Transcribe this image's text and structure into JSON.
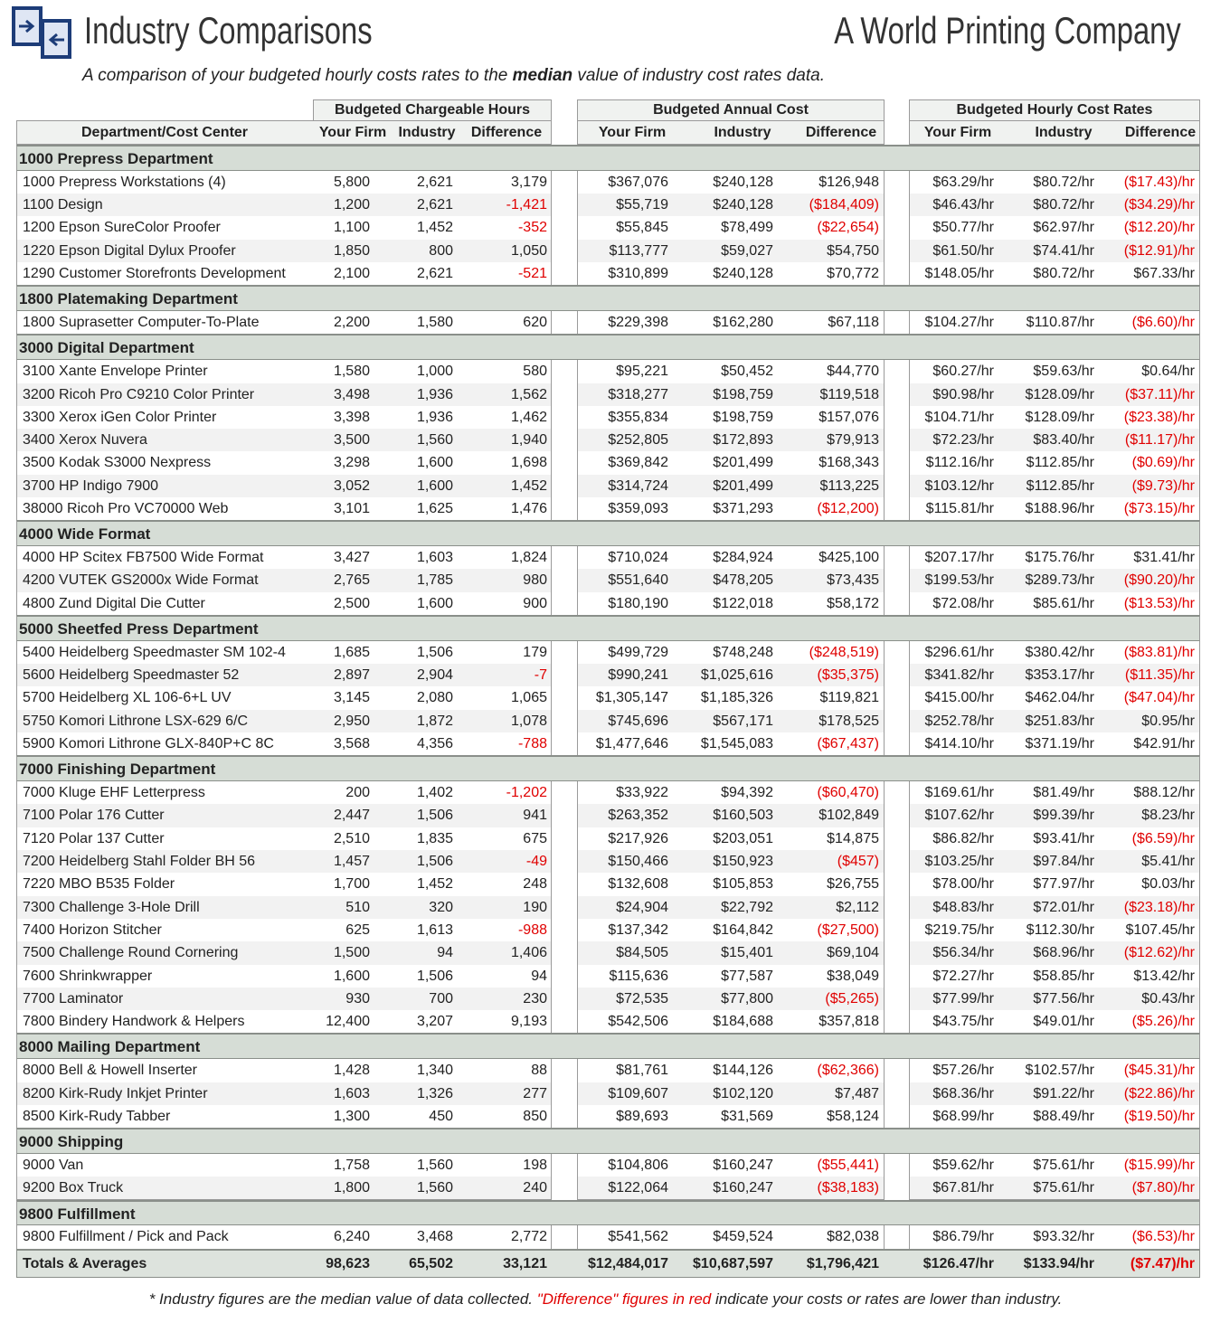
{
  "header": {
    "title": "Industry Comparisons",
    "company": "A World Printing Company",
    "subtitle": [
      "A comparison of your budgeted hourly costs rates to the ",
      "median",
      " value of industry cost rates data."
    ]
  },
  "table": {
    "group_headers": [
      "Budgeted Chargeable Hours",
      "Budgeted Annual Cost",
      "Budgeted Hourly Cost Rates"
    ],
    "column_headers": [
      "Department/Cost Center",
      "Your Firm",
      "Industry",
      "Difference",
      "Your Firm",
      "Industry",
      "Difference",
      "Your Firm",
      "Industry",
      "Difference"
    ],
    "sections": [
      {
        "name": "1000 Prepress Department",
        "rows": [
          [
            "1000 Prepress Workstations (4)",
            "5,800",
            "2,621",
            "3,179",
            "$367,076",
            "$240,128",
            "$126,948",
            "$63.29/hr",
            "$80.72/hr",
            "($17.43)/hr"
          ],
          [
            "1100 Design",
            "1,200",
            "2,621",
            "-1,421",
            "$55,719",
            "$240,128",
            "($184,409)",
            "$46.43/hr",
            "$80.72/hr",
            "($34.29)/hr"
          ],
          [
            "1200 Epson SureColor Proofer",
            "1,100",
            "1,452",
            "-352",
            "$55,845",
            "$78,499",
            "($22,654)",
            "$50.77/hr",
            "$62.97/hr",
            "($12.20)/hr"
          ],
          [
            "1220 Epson Digital Dylux Proofer",
            "1,850",
            "800",
            "1,050",
            "$113,777",
            "$59,027",
            "$54,750",
            "$61.50/hr",
            "$74.41/hr",
            "($12.91)/hr"
          ],
          [
            "1290 Customer Storefronts Development",
            "2,100",
            "2,621",
            "-521",
            "$310,899",
            "$240,128",
            "$70,772",
            "$148.05/hr",
            "$80.72/hr",
            "$67.33/hr"
          ]
        ]
      },
      {
        "name": "1800 Platemaking Department",
        "rows": [
          [
            "1800 Suprasetter Computer-To-Plate",
            "2,200",
            "1,580",
            "620",
            "$229,398",
            "$162,280",
            "$67,118",
            "$104.27/hr",
            "$110.87/hr",
            "($6.60)/hr"
          ]
        ]
      },
      {
        "name": "3000 Digital Department",
        "rows": [
          [
            "3100 Xante Envelope Printer",
            "1,580",
            "1,000",
            "580",
            "$95,221",
            "$50,452",
            "$44,770",
            "$60.27/hr",
            "$59.63/hr",
            "$0.64/hr"
          ],
          [
            "3200 Ricoh Pro C9210 Color Printer",
            "3,498",
            "1,936",
            "1,562",
            "$318,277",
            "$198,759",
            "$119,518",
            "$90.98/hr",
            "$128.09/hr",
            "($37.11)/hr"
          ],
          [
            "3300 Xerox iGen Color Printer",
            "3,398",
            "1,936",
            "1,462",
            "$355,834",
            "$198,759",
            "$157,076",
            "$104.71/hr",
            "$128.09/hr",
            "($23.38)/hr"
          ],
          [
            "3400 Xerox Nuvera",
            "3,500",
            "1,560",
            "1,940",
            "$252,805",
            "$172,893",
            "$79,913",
            "$72.23/hr",
            "$83.40/hr",
            "($11.17)/hr"
          ],
          [
            "3500 Kodak S3000 Nexpress",
            "3,298",
            "1,600",
            "1,698",
            "$369,842",
            "$201,499",
            "$168,343",
            "$112.16/hr",
            "$112.85/hr",
            "($0.69)/hr"
          ],
          [
            "3700 HP Indigo 7900",
            "3,052",
            "1,600",
            "1,452",
            "$314,724",
            "$201,499",
            "$113,225",
            "$103.12/hr",
            "$112.85/hr",
            "($9.73)/hr"
          ],
          [
            "38000 Ricoh Pro VC70000 Web",
            "3,101",
            "1,625",
            "1,476",
            "$359,093",
            "$371,293",
            "($12,200)",
            "$115.81/hr",
            "$188.96/hr",
            "($73.15)/hr"
          ]
        ]
      },
      {
        "name": "4000 Wide Format",
        "rows": [
          [
            "4000 HP Scitex FB7500 Wide Format",
            "3,427",
            "1,603",
            "1,824",
            "$710,024",
            "$284,924",
            "$425,100",
            "$207.17/hr",
            "$175.76/hr",
            "$31.41/hr"
          ],
          [
            "4200 VUTEK GS2000x Wide Format",
            "2,765",
            "1,785",
            "980",
            "$551,640",
            "$478,205",
            "$73,435",
            "$199.53/hr",
            "$289.73/hr",
            "($90.20)/hr"
          ],
          [
            "4800 Zund Digital Die Cutter",
            "2,500",
            "1,600",
            "900",
            "$180,190",
            "$122,018",
            "$58,172",
            "$72.08/hr",
            "$85.61/hr",
            "($13.53)/hr"
          ]
        ]
      },
      {
        "name": "5000 Sheetfed Press Department",
        "rows": [
          [
            "5400 Heidelberg Speedmaster SM 102-4",
            "1,685",
            "1,506",
            "179",
            "$499,729",
            "$748,248",
            "($248,519)",
            "$296.61/hr",
            "$380.42/hr",
            "($83.81)/hr"
          ],
          [
            "5600 Heidelberg Speedmaster 52",
            "2,897",
            "2,904",
            "-7",
            "$990,241",
            "$1,025,616",
            "($35,375)",
            "$341.82/hr",
            "$353.17/hr",
            "($11.35)/hr"
          ],
          [
            "5700 Heidelberg XL 106-6+L UV",
            "3,145",
            "2,080",
            "1,065",
            "$1,305,147",
            "$1,185,326",
            "$119,821",
            "$415.00/hr",
            "$462.04/hr",
            "($47.04)/hr"
          ],
          [
            "5750 Komori Lithrone LSX-629 6/C",
            "2,950",
            "1,872",
            "1,078",
            "$745,696",
            "$567,171",
            "$178,525",
            "$252.78/hr",
            "$251.83/hr",
            "$0.95/hr"
          ],
          [
            "5900 Komori Lithrone GLX-840P+C 8C",
            "3,568",
            "4,356",
            "-788",
            "$1,477,646",
            "$1,545,083",
            "($67,437)",
            "$414.10/hr",
            "$371.19/hr",
            "$42.91/hr"
          ]
        ]
      },
      {
        "name": "7000 Finishing Department",
        "rows": [
          [
            "7000 Kluge EHF Letterpress",
            "200",
            "1,402",
            "-1,202",
            "$33,922",
            "$94,392",
            "($60,470)",
            "$169.61/hr",
            "$81.49/hr",
            "$88.12/hr"
          ],
          [
            "7100 Polar 176 Cutter",
            "2,447",
            "1,506",
            "941",
            "$263,352",
            "$160,503",
            "$102,849",
            "$107.62/hr",
            "$99.39/hr",
            "$8.23/hr"
          ],
          [
            "7120 Polar 137 Cutter",
            "2,510",
            "1,835",
            "675",
            "$217,926",
            "$203,051",
            "$14,875",
            "$86.82/hr",
            "$93.41/hr",
            "($6.59)/hr"
          ],
          [
            "7200 Heidelberg Stahl Folder BH 56",
            "1,457",
            "1,506",
            "-49",
            "$150,466",
            "$150,923",
            "($457)",
            "$103.25/hr",
            "$97.84/hr",
            "$5.41/hr"
          ],
          [
            "7220 MBO B535 Folder",
            "1,700",
            "1,452",
            "248",
            "$132,608",
            "$105,853",
            "$26,755",
            "$78.00/hr",
            "$77.97/hr",
            "$0.03/hr"
          ],
          [
            "7300 Challenge 3-Hole Drill",
            "510",
            "320",
            "190",
            "$24,904",
            "$22,792",
            "$2,112",
            "$48.83/hr",
            "$72.01/hr",
            "($23.18)/hr"
          ],
          [
            "7400 Horizon Stitcher",
            "625",
            "1,613",
            "-988",
            "$137,342",
            "$164,842",
            "($27,500)",
            "$219.75/hr",
            "$112.30/hr",
            "$107.45/hr"
          ],
          [
            "7500 Challenge Round Cornering",
            "1,500",
            "94",
            "1,406",
            "$84,505",
            "$15,401",
            "$69,104",
            "$56.34/hr",
            "$68.96/hr",
            "($12.62)/hr"
          ],
          [
            "7600 Shrinkwrapper",
            "1,600",
            "1,506",
            "94",
            "$115,636",
            "$77,587",
            "$38,049",
            "$72.27/hr",
            "$58.85/hr",
            "$13.42/hr"
          ],
          [
            "7700 Laminator",
            "930",
            "700",
            "230",
            "$72,535",
            "$77,800",
            "($5,265)",
            "$77.99/hr",
            "$77.56/hr",
            "$0.43/hr"
          ],
          [
            "7800 Bindery Handwork & Helpers",
            "12,400",
            "3,207",
            "9,193",
            "$542,506",
            "$184,688",
            "$357,818",
            "$43.75/hr",
            "$49.01/hr",
            "($5.26)/hr"
          ]
        ]
      },
      {
        "name": "8000 Mailing Department",
        "rows": [
          [
            "8000 Bell & Howell Inserter",
            "1,428",
            "1,340",
            "88",
            "$81,761",
            "$144,126",
            "($62,366)",
            "$57.26/hr",
            "$102.57/hr",
            "($45.31)/hr"
          ],
          [
            "8200 Kirk-Rudy Inkjet Printer",
            "1,603",
            "1,326",
            "277",
            "$109,607",
            "$102,120",
            "$7,487",
            "$68.36/hr",
            "$91.22/hr",
            "($22.86)/hr"
          ],
          [
            "8500 Kirk-Rudy Tabber",
            "1,300",
            "450",
            "850",
            "$89,693",
            "$31,569",
            "$58,124",
            "$68.99/hr",
            "$88.49/hr",
            "($19.50)/hr"
          ]
        ]
      },
      {
        "name": "9000 Shipping",
        "rows": [
          [
            "9000 Van",
            "1,758",
            "1,560",
            "198",
            "$104,806",
            "$160,247",
            "($55,441)",
            "$59.62/hr",
            "$75.61/hr",
            "($15.99)/hr"
          ],
          [
            "9200 Box Truck",
            "1,800",
            "1,560",
            "240",
            "$122,064",
            "$160,247",
            "($38,183)",
            "$67.81/hr",
            "$75.61/hr",
            "($7.80)/hr"
          ]
        ]
      },
      {
        "name": "9800 Fulfillment",
        "rows": [
          [
            "9800 Fulfillment / Pick and Pack",
            "6,240",
            "3,468",
            "2,772",
            "$541,562",
            "$459,524",
            "$82,038",
            "$86.79/hr",
            "$93.32/hr",
            "($6.53)/hr"
          ]
        ]
      }
    ],
    "totals": [
      "Totals & Averages",
      "98,623",
      "65,502",
      "33,121",
      "$12,484,017",
      "$10,687,597",
      "$1,796,421",
      "$126.47/hr",
      "$133.94/hr",
      "($7.47)/hr"
    ]
  },
  "footnote": [
    "* Industry figures are the median value of data collected. ",
    "\"Difference\" figures in red",
    " indicate your costs or rates are lower than industry."
  ]
}
